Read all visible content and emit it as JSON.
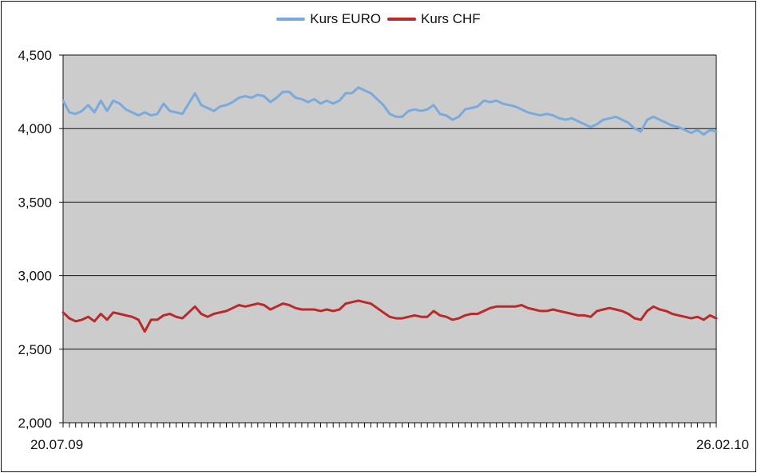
{
  "chart_data": {
    "type": "line",
    "title": "",
    "xlabel": "",
    "ylabel": "",
    "x_start_label": "20.07.09",
    "x_end_label": "26.02.10",
    "ylim": [
      2.0,
      4.5
    ],
    "yticks": [
      2.0,
      2.5,
      3.0,
      3.5,
      4.0,
      4.5
    ],
    "ytick_labels": [
      "2,000",
      "2,500",
      "3,000",
      "3,500",
      "4,000",
      "4,500"
    ],
    "grid": true,
    "legend_position": "top-center",
    "plot_background": "#cccccc",
    "series": [
      {
        "name": "Kurs EURO",
        "color": "#7aaadd",
        "values": [
          4.19,
          4.11,
          4.1,
          4.12,
          4.16,
          4.11,
          4.19,
          4.12,
          4.19,
          4.17,
          4.13,
          4.11,
          4.09,
          4.11,
          4.09,
          4.1,
          4.17,
          4.12,
          4.11,
          4.1,
          4.17,
          4.24,
          4.16,
          4.14,
          4.12,
          4.15,
          4.16,
          4.18,
          4.21,
          4.22,
          4.21,
          4.23,
          4.22,
          4.18,
          4.21,
          4.25,
          4.25,
          4.21,
          4.2,
          4.18,
          4.2,
          4.17,
          4.19,
          4.17,
          4.19,
          4.24,
          4.24,
          4.28,
          4.26,
          4.24,
          4.2,
          4.16,
          4.1,
          4.08,
          4.08,
          4.12,
          4.13,
          4.12,
          4.13,
          4.16,
          4.1,
          4.09,
          4.06,
          4.08,
          4.13,
          4.14,
          4.15,
          4.19,
          4.18,
          4.19,
          4.17,
          4.16,
          4.15,
          4.13,
          4.11,
          4.1,
          4.09,
          4.1,
          4.09,
          4.07,
          4.06,
          4.07,
          4.05,
          4.03,
          4.01,
          4.03,
          4.06,
          4.07,
          4.08,
          4.06,
          4.04,
          4.0,
          3.98,
          4.06,
          4.08,
          4.06,
          4.04,
          4.02,
          4.01,
          3.99,
          3.97,
          3.99,
          3.96,
          3.99,
          3.98
        ]
      },
      {
        "name": "Kurs CHF",
        "color": "#bb2a2a",
        "values": [
          2.75,
          2.71,
          2.69,
          2.7,
          2.72,
          2.69,
          2.74,
          2.7,
          2.75,
          2.74,
          2.73,
          2.72,
          2.7,
          2.62,
          2.7,
          2.7,
          2.73,
          2.74,
          2.72,
          2.71,
          2.75,
          2.79,
          2.74,
          2.72,
          2.74,
          2.75,
          2.76,
          2.78,
          2.8,
          2.79,
          2.8,
          2.81,
          2.8,
          2.77,
          2.79,
          2.81,
          2.8,
          2.78,
          2.77,
          2.77,
          2.77,
          2.76,
          2.77,
          2.76,
          2.77,
          2.81,
          2.82,
          2.83,
          2.82,
          2.81,
          2.78,
          2.75,
          2.72,
          2.71,
          2.71,
          2.72,
          2.73,
          2.72,
          2.72,
          2.76,
          2.73,
          2.72,
          2.7,
          2.71,
          2.73,
          2.74,
          2.74,
          2.76,
          2.78,
          2.79,
          2.79,
          2.79,
          2.79,
          2.8,
          2.78,
          2.77,
          2.76,
          2.76,
          2.77,
          2.76,
          2.75,
          2.74,
          2.73,
          2.73,
          2.72,
          2.76,
          2.77,
          2.78,
          2.77,
          2.76,
          2.74,
          2.71,
          2.7,
          2.76,
          2.79,
          2.77,
          2.76,
          2.74,
          2.73,
          2.72,
          2.71,
          2.72,
          2.7,
          2.73,
          2.71
        ]
      }
    ]
  }
}
